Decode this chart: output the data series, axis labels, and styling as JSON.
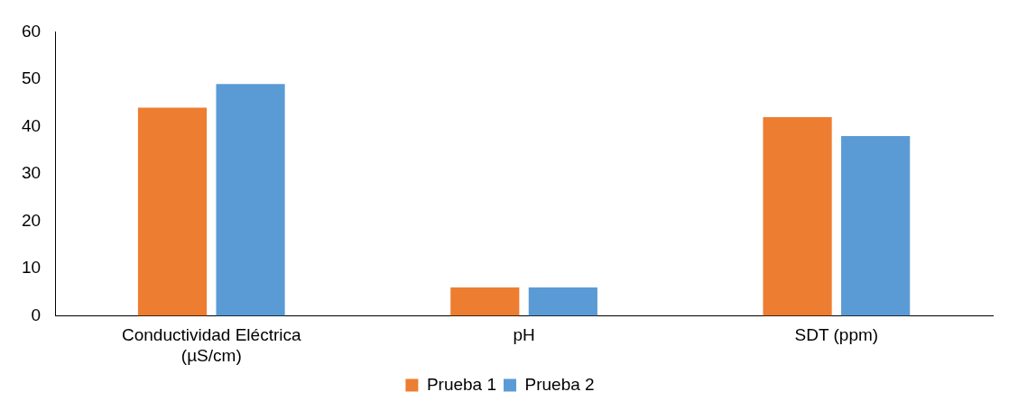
{
  "chart_data": {
    "type": "bar",
    "categories": [
      "Conductividad Eléctrica (µS/cm)",
      "pH",
      "SDT (ppm)"
    ],
    "series": [
      {
        "name": "Prueba 1",
        "color": "#ed7d31",
        "values": [
          44,
          6,
          42
        ]
      },
      {
        "name": "Prueba 2",
        "color": "#5b9bd5",
        "values": [
          49,
          6,
          38
        ]
      }
    ],
    "ylim": [
      0,
      60
    ],
    "yticks": [
      0,
      10,
      20,
      30,
      40,
      50,
      60
    ],
    "grid": false,
    "legend": "bottom"
  }
}
